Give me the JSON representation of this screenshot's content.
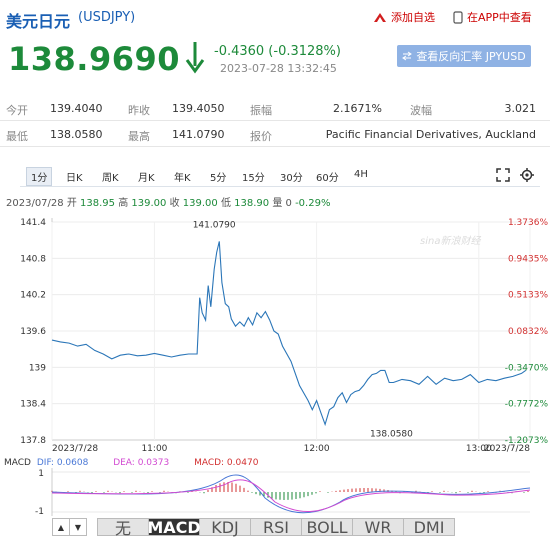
{
  "header": {
    "title": "美元日元",
    "code": "(USDJPY)",
    "add_watch_label": "添加自选",
    "app_label": "在APP中查看"
  },
  "quote": {
    "price": "138.9690",
    "change": "-0.4360 (-0.3128%)",
    "timestamp": "2023-07-28 13:32:45",
    "reverse_button": "查看反向汇率 JPYUSD",
    "down_color": "#1d8a3a"
  },
  "stats": {
    "open_label": "今开",
    "open": "139.4040",
    "prev_close_label": "昨收",
    "prev_close": "139.4050",
    "amplitude_label": "振幅",
    "amplitude": "2.1671%",
    "wave_label": "波幅",
    "wave": "3.021",
    "low_label": "最低",
    "low": "138.0580",
    "high_label": "最高",
    "high": "141.0790",
    "quote_src_label": "报价",
    "quote_src": "Pacific Financial Derivatives, Auckland"
  },
  "periods": [
    "1分",
    "日K",
    "周K",
    "月K",
    "年K",
    "5分",
    "15分",
    "30分",
    "60分",
    "4H"
  ],
  "ohlc_bar": {
    "date": "2023/07/28",
    "open_label": "开",
    "open": "138.95",
    "high_label": "高",
    "high": "139.00",
    "close_label": "收",
    "close": "139.00",
    "low_label": "低",
    "low": "138.90",
    "vol_label": "量",
    "vol": "0",
    "chg": "-0.29%"
  },
  "watermark": "sina新浪财经",
  "chart_data": {
    "type": "line",
    "y_left_ticks": [
      "141.4",
      "140.8",
      "140.2",
      "139.6",
      "139",
      "138.4",
      "137.8"
    ],
    "y_right_ticks": [
      "1.3736%",
      "0.9435%",
      "0.5133%",
      "0.0832%",
      "-0.3470%",
      "-0.7772%",
      "-1.2073%"
    ],
    "ylim": [
      137.8,
      141.4
    ],
    "x_tick_labels": [
      "2023/7/28",
      "11:00",
      "12:00",
      "13:00",
      "2023/7/28"
    ],
    "annotations": [
      {
        "label": "141.0790",
        "x": 19,
        "y": 141.079
      },
      {
        "label": "138.0580",
        "x": 40,
        "y": 138.058
      }
    ],
    "series": [
      {
        "values": [
          [
            0,
            139.45
          ],
          [
            1,
            139.42
          ],
          [
            2,
            139.4
          ],
          [
            3,
            139.35
          ],
          [
            4,
            139.38
          ],
          [
            5,
            139.28
          ],
          [
            6,
            139.22
          ],
          [
            7,
            139.14
          ],
          [
            8,
            139.2
          ],
          [
            9,
            139.22
          ],
          [
            10,
            139.19
          ],
          [
            11,
            139.2
          ],
          [
            12,
            139.23
          ],
          [
            13,
            139.2
          ],
          [
            14,
            139.17
          ],
          [
            15,
            139.2
          ],
          [
            16,
            139.22
          ],
          [
            17,
            139.22
          ],
          [
            17.3,
            140.15
          ],
          [
            17.6,
            139.9
          ],
          [
            18,
            139.78
          ],
          [
            18.3,
            140.35
          ],
          [
            18.6,
            140.0
          ],
          [
            19,
            140.62
          ],
          [
            19.3,
            140.9
          ],
          [
            19.6,
            141.079
          ],
          [
            19.9,
            140.4
          ],
          [
            20.3,
            140.05
          ],
          [
            20.7,
            140.0
          ],
          [
            21,
            139.8
          ],
          [
            21.5,
            139.68
          ],
          [
            22,
            139.75
          ],
          [
            22.5,
            139.68
          ],
          [
            23,
            139.82
          ],
          [
            23.5,
            139.7
          ],
          [
            24,
            139.9
          ],
          [
            24.5,
            139.82
          ],
          [
            25,
            139.92
          ],
          [
            25.5,
            139.78
          ],
          [
            26,
            139.6
          ],
          [
            26.5,
            139.55
          ],
          [
            27,
            139.35
          ],
          [
            28,
            139.1
          ],
          [
            29,
            138.7
          ],
          [
            30,
            138.45
          ],
          [
            30.5,
            138.3
          ],
          [
            31,
            138.45
          ],
          [
            31.5,
            138.25
          ],
          [
            32,
            138.058
          ],
          [
            32.5,
            138.3
          ],
          [
            33,
            138.35
          ],
          [
            33.5,
            138.5
          ],
          [
            34,
            138.58
          ],
          [
            34.5,
            138.42
          ],
          [
            35,
            138.55
          ],
          [
            35.5,
            138.6
          ],
          [
            36,
            138.62
          ],
          [
            36.5,
            138.7
          ],
          [
            37,
            138.8
          ],
          [
            37.5,
            138.88
          ],
          [
            38,
            138.9
          ],
          [
            38.5,
            138.95
          ],
          [
            39,
            138.95
          ],
          [
            39.5,
            138.75
          ],
          [
            40,
            138.75
          ],
          [
            41,
            138.8
          ],
          [
            42,
            138.78
          ],
          [
            43,
            138.72
          ],
          [
            44,
            138.85
          ],
          [
            45,
            138.72
          ],
          [
            46,
            138.82
          ],
          [
            47,
            138.78
          ],
          [
            48,
            138.8
          ],
          [
            49,
            138.88
          ],
          [
            50,
            138.75
          ],
          [
            51,
            138.8
          ],
          [
            52,
            138.78
          ],
          [
            53,
            138.82
          ],
          [
            54,
            138.85
          ],
          [
            55,
            138.9
          ],
          [
            55.5,
            138.95
          ]
        ]
      }
    ]
  },
  "macd": {
    "label": "MACD",
    "dif": "DIF: 0.0608",
    "dea": "DEA: 0.0373",
    "macd": "MACD: 0.0470",
    "ticks": [
      "1",
      "-1"
    ],
    "dif_color": "#4a78d6",
    "dea_color": "#d24ad2",
    "macd_color": "#d23030"
  },
  "indicator_tabs": [
    "无",
    "MACD",
    "KDJ",
    "RSI",
    "BOLL",
    "WR",
    "DMI"
  ]
}
